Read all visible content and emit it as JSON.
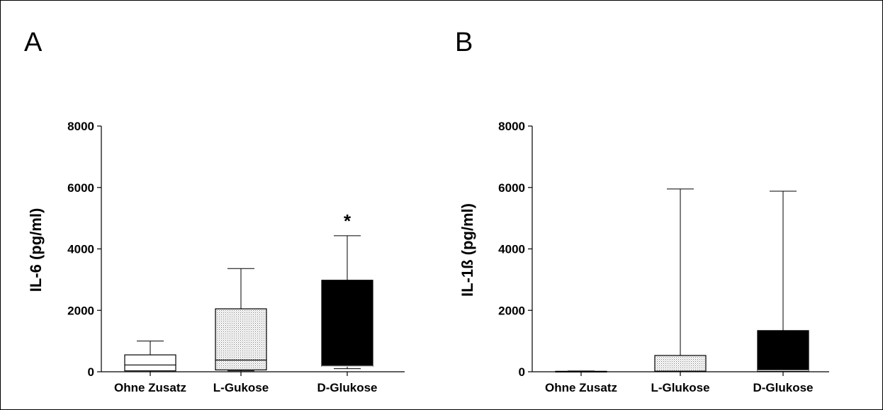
{
  "chart_data": [
    {
      "type": "box",
      "panel": "A",
      "title": "",
      "ylabel": "IL-6  (pg/ml)",
      "xlabel": "",
      "ylim": [
        0,
        8000
      ],
      "yticks": [
        0,
        2000,
        4000,
        6000,
        8000
      ],
      "ytick_labels": [
        "0",
        "2000",
        "4000",
        "6000",
        "8000"
      ],
      "categories": [
        "Ohne Zusatz",
        "L-Gukose",
        "D-Glukose"
      ],
      "boxes": [
        {
          "min": 0,
          "q1": 30,
          "median": 220,
          "q3": 550,
          "max": 1000,
          "fill": "white"
        },
        {
          "min": 30,
          "q1": 60,
          "median": 380,
          "q3": 2050,
          "max": 3360,
          "fill": "dots"
        },
        {
          "min": 100,
          "q1": 180,
          "median": 180,
          "q3": 2980,
          "max": 4430,
          "fill": "black"
        }
      ],
      "annotations": [
        {
          "category": "D-Glukose",
          "text": "*"
        }
      ]
    },
    {
      "type": "box",
      "panel": "B",
      "title": "",
      "ylabel": "IL-1ß  (pg/ml)",
      "xlabel": "",
      "ylim": [
        0,
        8000
      ],
      "yticks": [
        0,
        2000,
        4000,
        6000,
        8000
      ],
      "ytick_labels": [
        "0",
        "2000",
        "4000",
        "6000",
        "8000"
      ],
      "categories": [
        "Ohne Zusatz",
        "L-Glukose",
        "D-Glukose"
      ],
      "boxes": [
        {
          "min": 0,
          "q1": 0,
          "median": 0,
          "q3": 15,
          "max": 25,
          "fill": "white"
        },
        {
          "min": 0,
          "q1": 10,
          "median": 20,
          "q3": 530,
          "max": 5950,
          "fill": "dots"
        },
        {
          "min": 0,
          "q1": 20,
          "median": 40,
          "q3": 1340,
          "max": 5880,
          "fill": "black"
        }
      ],
      "annotations": []
    }
  ],
  "colors": {
    "ink": "#000000",
    "background": "#ffffff",
    "dots": "#777777"
  }
}
